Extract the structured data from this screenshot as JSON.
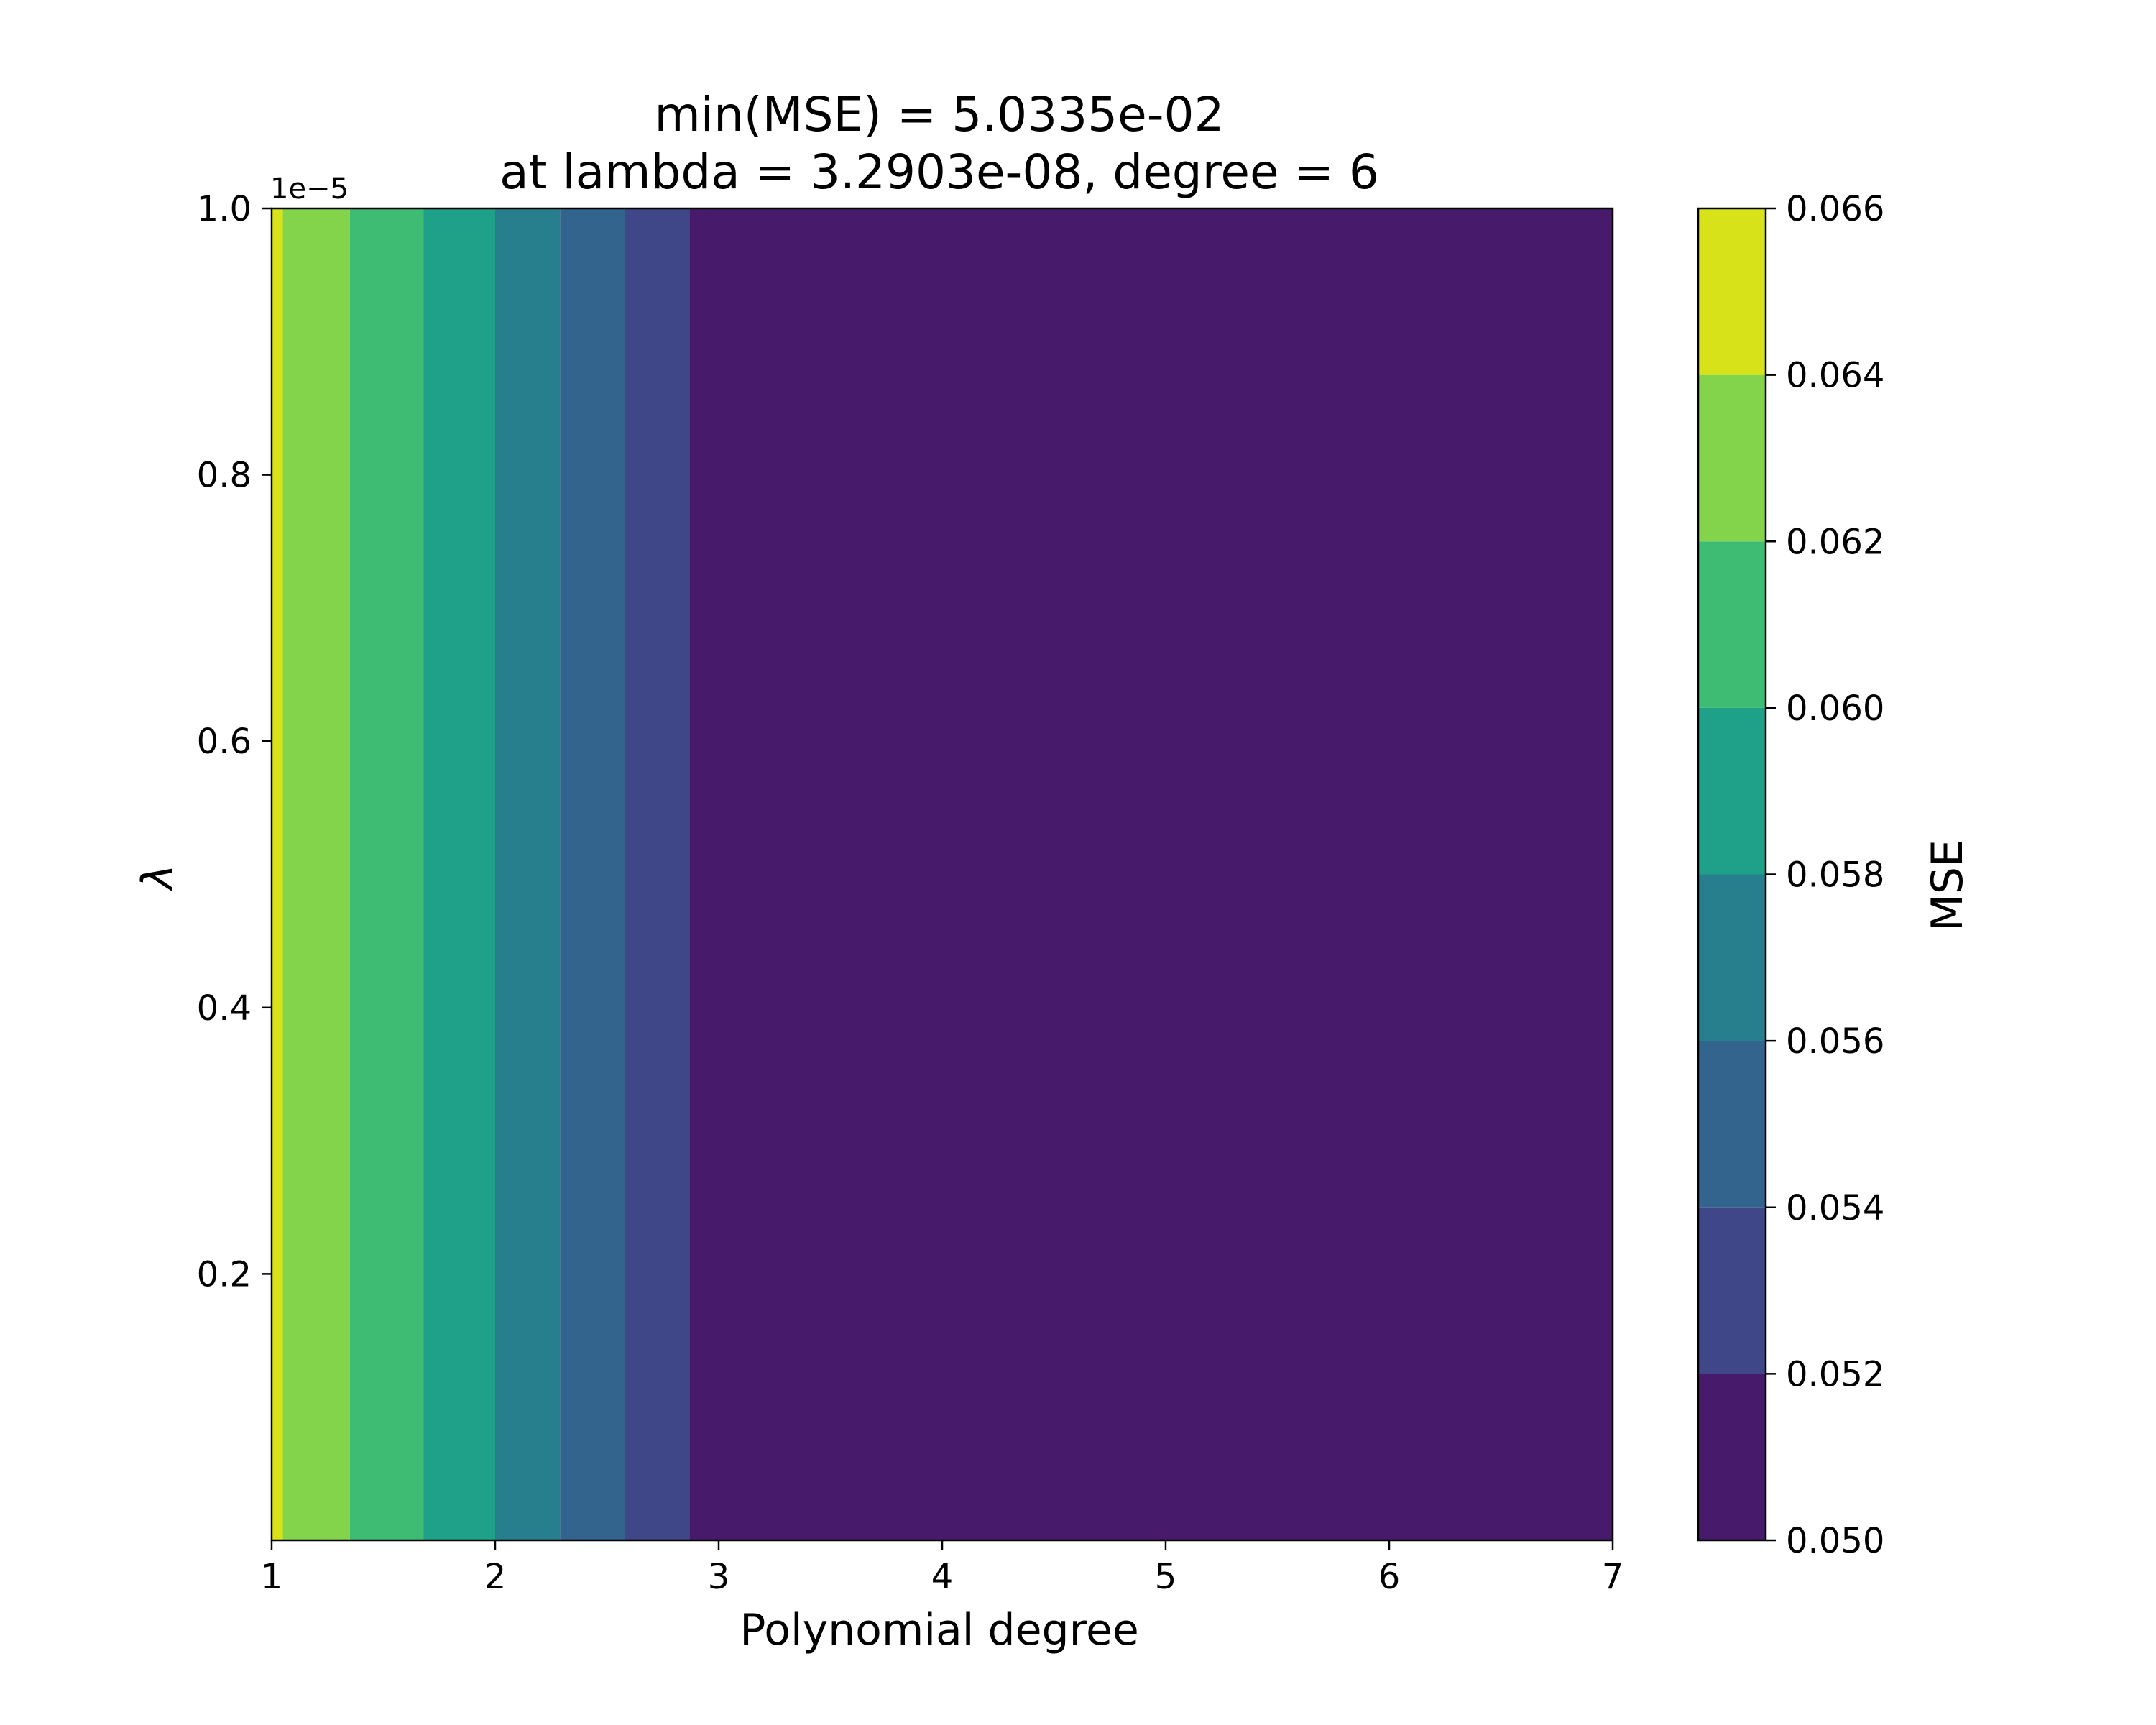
{
  "chart_data": {
    "type": "heatmap",
    "subtype": "filled-contour",
    "title_line1": "min(MSE) = 5.0335e-02",
    "title_line2": "at lambda = 3.2903e-08, degree = 6",
    "xlabel": "Polynomial degree",
    "ylabel": "λ",
    "y_offset_text": "1e−5",
    "xlim": [
      1,
      7
    ],
    "ylim": [
      0.0,
      1.0
    ],
    "x_ticks": [
      1,
      2,
      3,
      4,
      5,
      6,
      7
    ],
    "x_tick_labels": [
      "1",
      "2",
      "3",
      "4",
      "5",
      "6",
      "7"
    ],
    "y_ticks": [
      0.2,
      0.4,
      0.6,
      0.8,
      1.0
    ],
    "y_tick_labels": [
      "0.2",
      "0.4",
      "0.6",
      "0.8",
      "1.0"
    ],
    "colorbar": {
      "label": "MSE",
      "levels": [
        0.05,
        0.052,
        0.054,
        0.056,
        0.058,
        0.06,
        0.062,
        0.064,
        0.066
      ],
      "tick_labels": [
        "0.050",
        "0.052",
        "0.054",
        "0.056",
        "0.058",
        "0.060",
        "0.062",
        "0.064",
        "0.066"
      ],
      "colors": [
        "#481a6c",
        "#3f4788",
        "#32648e",
        "#277f8e",
        "#1fa088",
        "#3fbc73",
        "#84d44b",
        "#d8e219"
      ]
    },
    "bands": [
      {
        "range": [
          0.064,
          0.066
        ],
        "color": "#d8e219",
        "x_from": 1.0,
        "x_to": 1.05
      },
      {
        "range": [
          0.062,
          0.064
        ],
        "color": "#84d44b",
        "x_from": 1.05,
        "x_to": 1.35
      },
      {
        "range": [
          0.06,
          0.062
        ],
        "color": "#3fbc73",
        "x_from": 1.35,
        "x_to": 1.68
      },
      {
        "range": [
          0.058,
          0.06
        ],
        "color": "#1fa088",
        "x_from": 1.68,
        "x_to": 2.0
      },
      {
        "range": [
          0.056,
          0.058
        ],
        "color": "#277f8e",
        "x_from": 2.0,
        "x_to": 2.29
      },
      {
        "range": [
          0.054,
          0.056
        ],
        "color": "#32648e",
        "x_from": 2.29,
        "x_to": 2.58
      },
      {
        "range": [
          0.052,
          0.054
        ],
        "color": "#3f4788",
        "x_from": 2.58,
        "x_to": 2.87
      },
      {
        "range": [
          0.05,
          0.052
        ],
        "color": "#481a6c",
        "x_from": 2.87,
        "x_to": 7.0
      }
    ],
    "min_mse": 0.050335,
    "min_at": {
      "lambda": 3.2903e-08,
      "degree": 6
    },
    "grid": false
  }
}
